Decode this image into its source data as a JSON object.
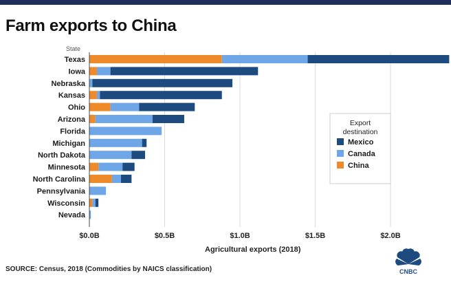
{
  "header": {
    "title": "Farm exports to China"
  },
  "footer": {
    "source": "SOURCE: Census, 2018 (Commodities by NAICS classification)"
  },
  "logo": {
    "text": "CNBC"
  },
  "colors": {
    "mexico": "#1e4b7f",
    "canada": "#6ea6e8",
    "china": "#ee8a2a",
    "grid": "#d9d9d9",
    "baseline": "#444444"
  },
  "chart_data": {
    "type": "bar",
    "orientation": "horizontal",
    "stacked": true,
    "title": "Farm exports to China",
    "ylabel": "State",
    "xlabel": "Agricultural exports (2018)",
    "xlim": [
      0,
      2.4
    ],
    "x_ticks": [
      0,
      0.5,
      1.0,
      1.5,
      2.0
    ],
    "x_tick_labels": [
      "$0.0B",
      "$0.5B",
      "$1.0B",
      "$1.5B",
      "$2.0B"
    ],
    "grid": true,
    "categories": [
      "Texas",
      "Iowa",
      "Nebraska",
      "Kansas",
      "Ohio",
      "Arizona",
      "Florida",
      "Michigan",
      "North Dakota",
      "Minnesota",
      "North Carolina",
      "Pennsylvania",
      "Wisconsin",
      "Nevada"
    ],
    "series": [
      {
        "name": "China",
        "key": "china",
        "values": [
          0.88,
          0.05,
          0.0,
          0.05,
          0.14,
          0.04,
          0.0,
          0.0,
          0.0,
          0.06,
          0.15,
          0.0,
          0.02,
          0.0
        ]
      },
      {
        "name": "Canada",
        "key": "canada",
        "values": [
          0.57,
          0.09,
          0.02,
          0.02,
          0.19,
          0.38,
          0.48,
          0.35,
          0.28,
          0.16,
          0.06,
          0.11,
          0.02,
          0.01
        ]
      },
      {
        "name": "Mexico",
        "key": "mexico",
        "values": [
          0.94,
          0.98,
          0.93,
          0.81,
          0.37,
          0.21,
          0.0,
          0.03,
          0.09,
          0.08,
          0.07,
          0.0,
          0.02,
          0.0
        ]
      }
    ],
    "legend": {
      "title": "Export\ndestination",
      "placement": "right",
      "order": [
        "mexico",
        "canada",
        "china"
      ]
    }
  }
}
